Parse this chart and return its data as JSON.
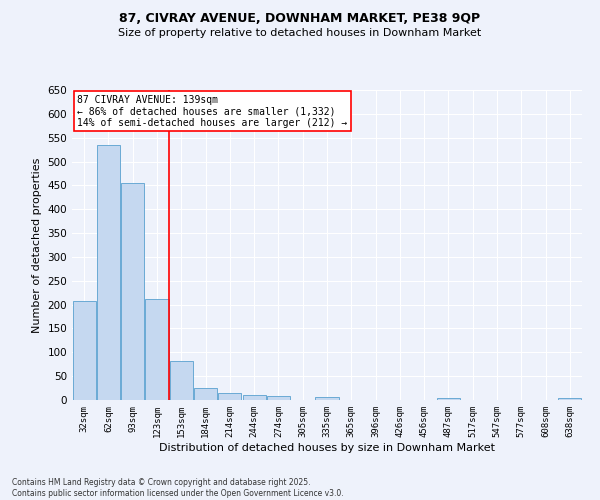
{
  "title1": "87, CIVRAY AVENUE, DOWNHAM MARKET, PE38 9QP",
  "title2": "Size of property relative to detached houses in Downham Market",
  "xlabel": "Distribution of detached houses by size in Downham Market",
  "ylabel": "Number of detached properties",
  "bins": [
    "32sqm",
    "62sqm",
    "93sqm",
    "123sqm",
    "153sqm",
    "184sqm",
    "214sqm",
    "244sqm",
    "274sqm",
    "305sqm",
    "335sqm",
    "365sqm",
    "396sqm",
    "426sqm",
    "456sqm",
    "487sqm",
    "517sqm",
    "547sqm",
    "577sqm",
    "608sqm",
    "638sqm"
  ],
  "bar_heights": [
    208,
    535,
    456,
    212,
    81,
    26,
    14,
    11,
    8,
    0,
    6,
    0,
    0,
    0,
    0,
    4,
    0,
    0,
    0,
    0,
    5
  ],
  "bar_color": "#c5d8f0",
  "bar_edge_color": "#6aaad4",
  "vline_x": 3.5,
  "annotation_title": "87 CIVRAY AVENUE: 139sqm",
  "annotation_line1": "← 86% of detached houses are smaller (1,332)",
  "annotation_line2": "14% of semi-detached houses are larger (212) →",
  "ylim": [
    0,
    650
  ],
  "yticks": [
    0,
    50,
    100,
    150,
    200,
    250,
    300,
    350,
    400,
    450,
    500,
    550,
    600,
    650
  ],
  "background_color": "#eef2fb",
  "grid_color": "#ffffff",
  "footer1": "Contains HM Land Registry data © Crown copyright and database right 2025.",
  "footer2": "Contains public sector information licensed under the Open Government Licence v3.0."
}
